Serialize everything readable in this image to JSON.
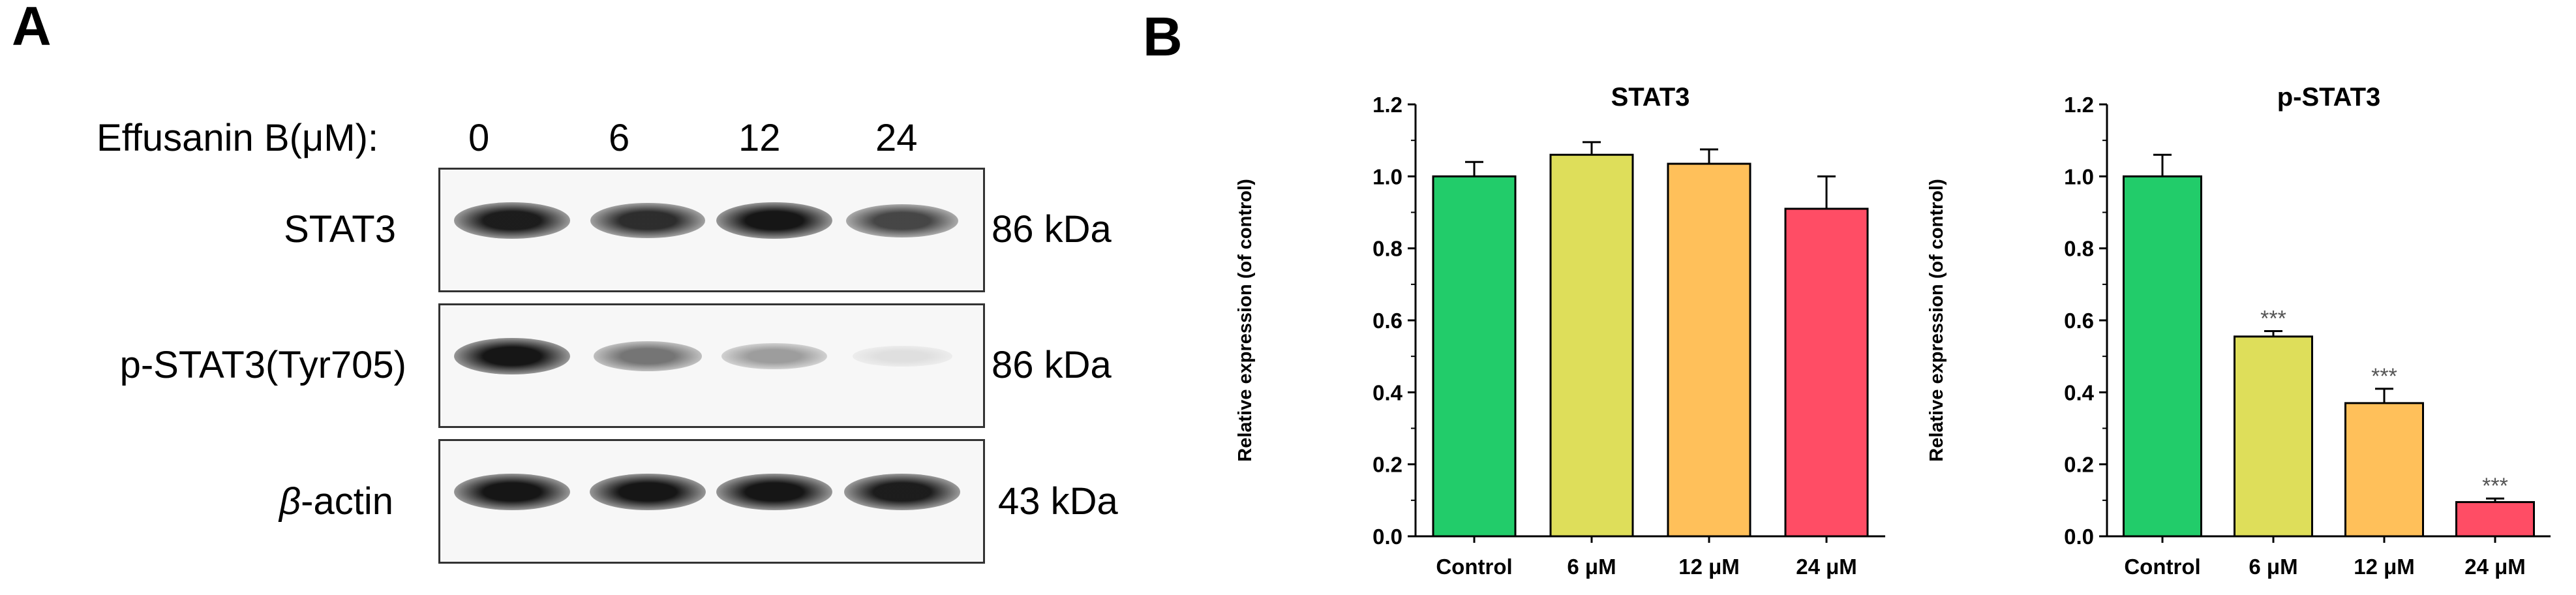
{
  "panels": {
    "a": "A",
    "b": "B"
  },
  "western_blot": {
    "treatment_label": "Effusanin B(μM):",
    "doses": [
      "0",
      "6",
      "12",
      "24"
    ],
    "rows": [
      {
        "label": "STAT3",
        "kda": "86 kDa",
        "intensity": [
          0.92,
          0.85,
          0.95,
          0.75
        ]
      },
      {
        "label": "p-STAT3(Tyr705)",
        "kda": "86 kDa",
        "intensity": [
          0.95,
          0.55,
          0.38,
          0.1
        ]
      },
      {
        "label_greek": "β",
        "label_rest": "-actin",
        "kda": "43 kDa",
        "intensity": [
          0.95,
          0.95,
          0.95,
          0.92
        ]
      }
    ]
  },
  "chart_data": [
    {
      "type": "bar",
      "title": "STAT3",
      "ylabel": "Relative expression (of control)",
      "xlabel": "",
      "categories": [
        "Control",
        "6 μM",
        "12 μM",
        "24 μM"
      ],
      "values": [
        1.0,
        1.06,
        1.035,
        0.91
      ],
      "errors": [
        0.04,
        0.035,
        0.04,
        0.09
      ],
      "significance": [
        "",
        "",
        "",
        ""
      ],
      "ylim": [
        0,
        1.2
      ],
      "yticks": [
        "0.0",
        "0.2",
        "0.4",
        "0.6",
        "0.8",
        "1.0",
        "1.2"
      ],
      "colors": [
        "#22cc6a",
        "#dede5a",
        "#ffc05a",
        "#ff4d65"
      ]
    },
    {
      "type": "bar",
      "title": "p-STAT3",
      "ylabel": "Relative expression (of control)",
      "xlabel": "",
      "categories": [
        "Control",
        "6 μM",
        "12 μM",
        "24 μM"
      ],
      "values": [
        1.0,
        0.555,
        0.37,
        0.095
      ],
      "errors": [
        0.06,
        0.015,
        0.04,
        0.01
      ],
      "significance": [
        "",
        "***",
        "***",
        "***"
      ],
      "ylim": [
        0,
        1.2
      ],
      "yticks": [
        "0.0",
        "0.2",
        "0.4",
        "0.6",
        "0.8",
        "1.0",
        "1.2"
      ],
      "colors": [
        "#22cc6a",
        "#dede5a",
        "#ffc05a",
        "#ff4d65"
      ]
    }
  ]
}
